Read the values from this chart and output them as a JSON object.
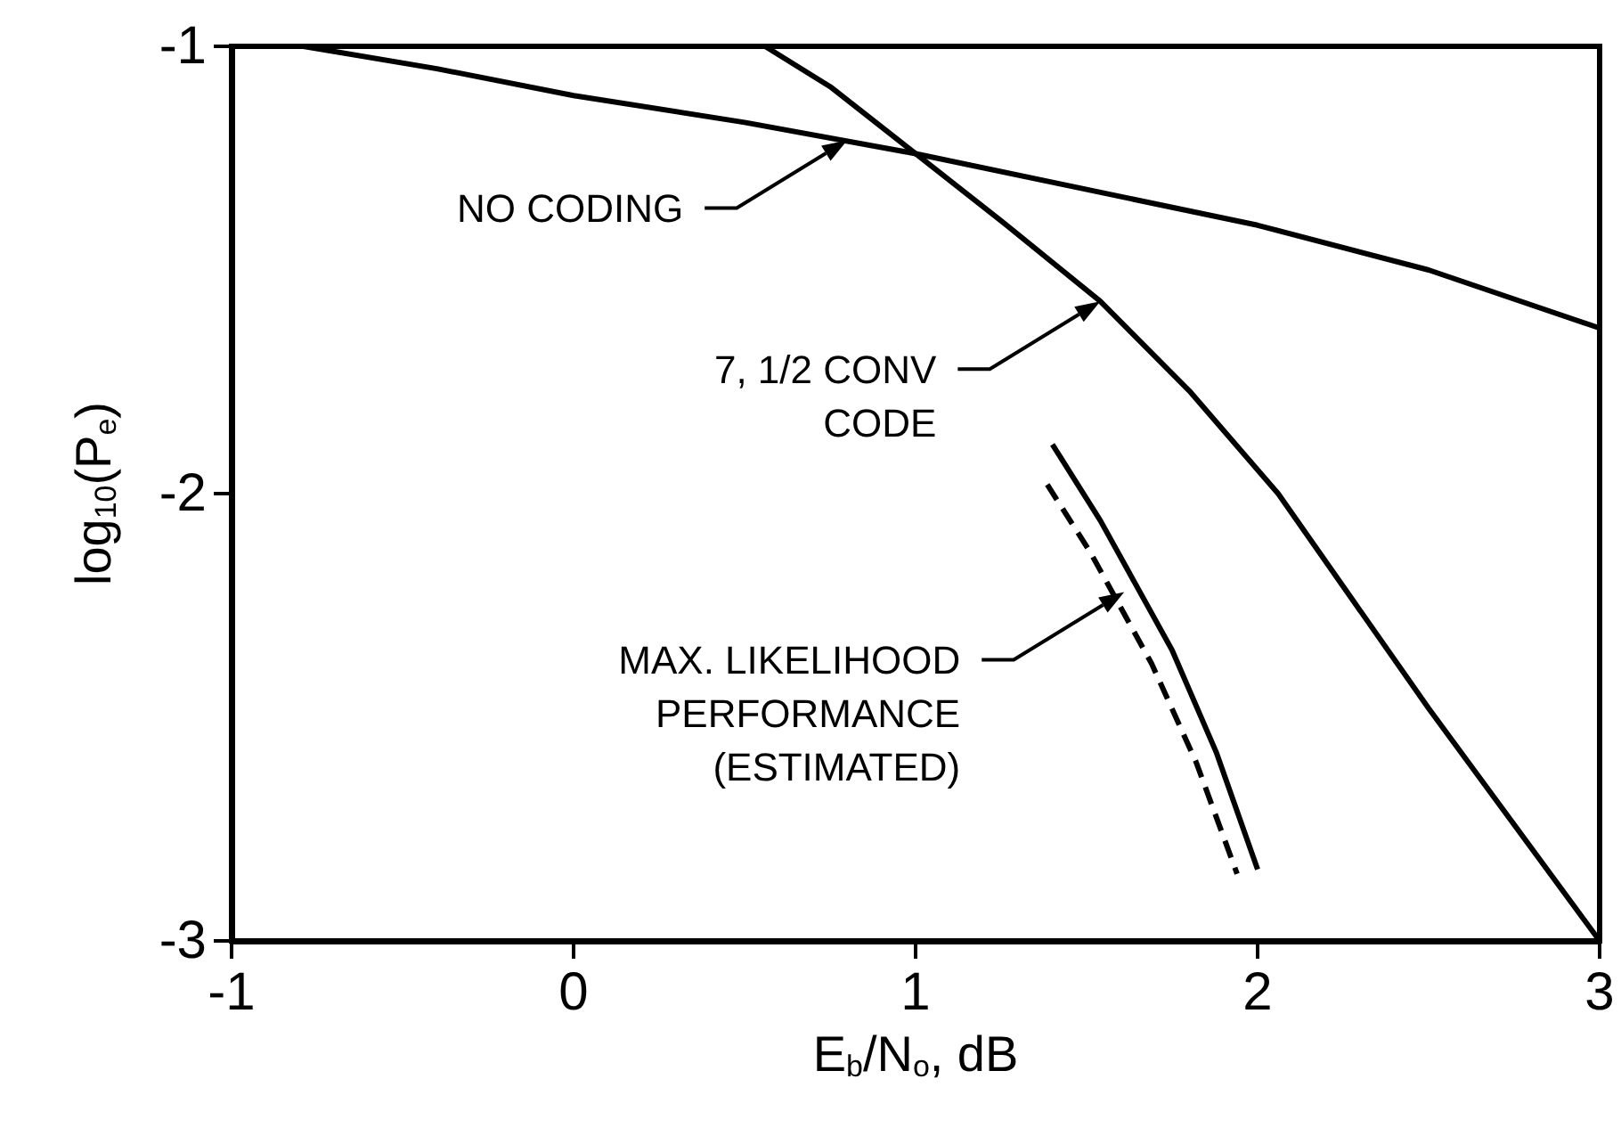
{
  "chart_data": {
    "type": "line",
    "xlabel": "E$_{b}$/N$_{o}$, dB",
    "ylabel": "log$_{10}$(P$_{e}$)",
    "xlim": [
      -1,
      3
    ],
    "xticks": [
      -1,
      0,
      1,
      2,
      3
    ],
    "ylim": [
      -3,
      -1
    ],
    "yticks": [
      -3,
      -2,
      -1
    ],
    "grid": false,
    "marker": "none",
    "series": [
      {
        "color": "#000000",
        "line_style": "solid",
        "x": [
          -0.79,
          -0.4,
          0,
          0.5,
          1,
          1.5,
          2,
          2.5,
          3
        ],
        "values": [
          -1.0,
          -1.05,
          -1.11,
          -1.17,
          -1.24,
          -1.32,
          -1.4,
          -1.5,
          -1.63
        ]
      },
      {
        "color": "#000000",
        "line_style": "solid",
        "x": [
          0.56,
          0.75,
          1,
          1.25,
          1.54,
          1.8,
          2.06,
          2.5,
          3
        ],
        "values": [
          -1.0,
          -1.09,
          -1.24,
          -1.39,
          -1.57,
          -1.77,
          -2.0,
          -2.48,
          -3.0
        ]
      },
      {
        "color": "#000000",
        "line_style": "solid",
        "x": [
          1.4,
          1.54,
          1.75,
          1.88,
          2.0
        ],
        "values": [
          -1.89,
          -2.06,
          -2.35,
          -2.58,
          -2.84
        ]
      },
      {
        "color": "#000000",
        "line_style": "dashed",
        "x": [
          1.385,
          1.51,
          1.69,
          1.82,
          1.94
        ],
        "values": [
          -1.98,
          -2.13,
          -2.38,
          -2.6,
          -2.85
        ]
      }
    ],
    "annotations": [
      "NO CODING",
      "7, 1/2 CONV\nCODE",
      "MAX. LIKELIHOOD\nPERFORMANCE\n(ESTIMATED)"
    ]
  }
}
